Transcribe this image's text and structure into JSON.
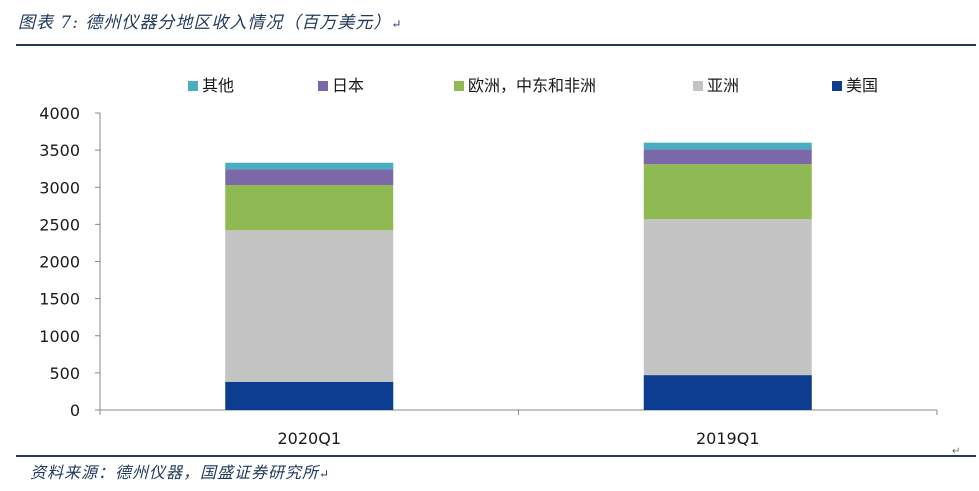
{
  "figure": {
    "title": "图表 7:  德州仪器分地区收入情况（百万美元）",
    "title_end_mark": "↵",
    "source": "资料来源：德州仪器，国盛证券研究所",
    "source_end_mark": "↵",
    "corner_mark": "↵"
  },
  "chart_data": {
    "type": "bar",
    "stacked": true,
    "title": "",
    "xlabel": "",
    "ylabel": "",
    "categories": [
      "2020Q1",
      "2019Q1"
    ],
    "ylim": [
      0,
      4000
    ],
    "yticks": [
      0,
      500,
      1000,
      1500,
      2000,
      2500,
      3000,
      3500,
      4000
    ],
    "legend_position": "top",
    "series": [
      {
        "name": "美国",
        "color": "#0d3d91",
        "values": [
          380,
          470
        ]
      },
      {
        "name": "亚洲",
        "color": "#c4c4c4",
        "values": [
          2040,
          2100
        ]
      },
      {
        "name": "欧洲，中东和非洲",
        "color": "#8fba53",
        "values": [
          610,
          740
        ]
      },
      {
        "name": "日本",
        "color": "#7b68a8",
        "values": [
          210,
          200
        ]
      },
      {
        "name": "其他",
        "color": "#4aaec3",
        "values": [
          90,
          90
        ]
      }
    ],
    "legend_order": [
      "其他",
      "日本",
      "欧洲，中东和非洲",
      "亚洲",
      "美国"
    ]
  }
}
